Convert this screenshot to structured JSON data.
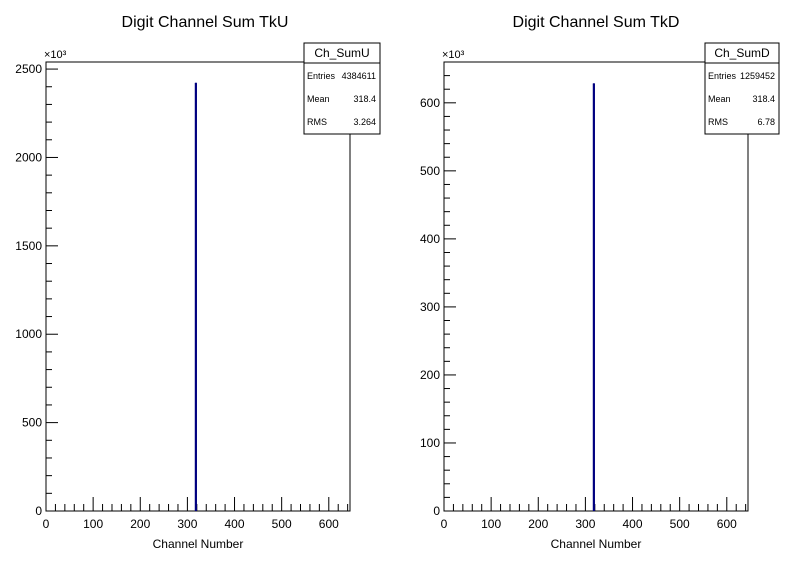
{
  "chart_data": [
    {
      "type": "bar",
      "title": "Digit Channel Sum TkU",
      "xlabel": "Channel Number",
      "ylabel": "",
      "y_multiplier_label": "×10³",
      "xlim": [
        0,
        645
      ],
      "ylim": [
        0,
        2540
      ],
      "x_ticks": [
        0,
        100,
        200,
        300,
        400,
        500,
        600
      ],
      "x_tick_labels": [
        "0",
        "100",
        "200",
        "300",
        "400",
        "500",
        "600"
      ],
      "y_ticks": [
        0,
        500,
        1000,
        1500,
        2000,
        2500
      ],
      "y_tick_labels": [
        "0",
        "500",
        "1000",
        "1500",
        "2000",
        "2500"
      ],
      "bins": [
        {
          "x": 318,
          "value": 2420
        }
      ],
      "line_color": "#000080",
      "stats": {
        "name": "Ch_SumU",
        "rows": [
          {
            "label": "Entries",
            "value": "4384611"
          },
          {
            "label": "Mean",
            "value": "318.4"
          },
          {
            "label": "RMS",
            "value": "3.264"
          }
        ]
      }
    },
    {
      "type": "bar",
      "title": "Digit Channel Sum TkD",
      "xlabel": "Channel Number",
      "ylabel": "",
      "y_multiplier_label": "×10³",
      "xlim": [
        0,
        645
      ],
      "ylim": [
        0,
        660
      ],
      "x_ticks": [
        0,
        100,
        200,
        300,
        400,
        500,
        600
      ],
      "x_tick_labels": [
        "0",
        "100",
        "200",
        "300",
        "400",
        "500",
        "600"
      ],
      "y_ticks": [
        0,
        100,
        200,
        300,
        400,
        500,
        600
      ],
      "y_tick_labels": [
        "0",
        "100",
        "200",
        "300",
        "400",
        "500",
        "600"
      ],
      "bins": [
        {
          "x": 318,
          "value": 628
        }
      ],
      "line_color": "#000080",
      "stats": {
        "name": "Ch_SumD",
        "rows": [
          {
            "label": "Entries",
            "value": "1259452"
          },
          {
            "label": "Mean",
            "value": "318.4"
          },
          {
            "label": "RMS",
            "value": "6.78"
          }
        ]
      }
    }
  ]
}
